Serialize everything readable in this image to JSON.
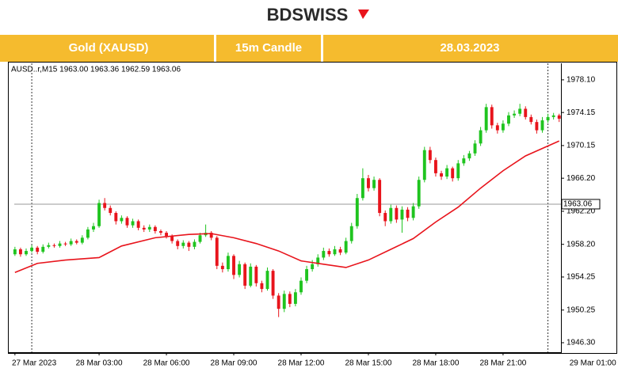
{
  "brand": "BDSWISS",
  "header": {
    "instrument": "Gold (XAUSD)",
    "timeframe": "15m Candle",
    "date": "28.03.2023"
  },
  "chart_data": {
    "type": "candlestick",
    "info": "AUSD..r,M15  1963.00 1963.36 1962.59 1963.06",
    "up_color": "#1fc41f",
    "down_color": "#e8141c",
    "x": [
      -0.75,
      -0.5,
      -0.25,
      0,
      0.25,
      0.5,
      0.75,
      1,
      1.25,
      1.5,
      1.75,
      2,
      2.25,
      2.5,
      2.75,
      3,
      3.25,
      3.5,
      3.75,
      4,
      4.25,
      4.5,
      4.75,
      5,
      5.25,
      5.5,
      5.75,
      6,
      6.25,
      6.5,
      6.75,
      7,
      7.25,
      7.5,
      7.75,
      8,
      8.25,
      8.5,
      8.75,
      9,
      9.25,
      9.5,
      9.75,
      10,
      10.25,
      10.5,
      10.75,
      11,
      11.25,
      11.5,
      11.75,
      12,
      12.25,
      12.5,
      12.75,
      13,
      13.25,
      13.5,
      13.75,
      14,
      14.25,
      14.5,
      14.75,
      15,
      15.25,
      15.5,
      15.75,
      16,
      16.25,
      16.5,
      16.75,
      17,
      17.25,
      17.5,
      17.75,
      18,
      18.25,
      18.5,
      18.75,
      19,
      19.25,
      19.5,
      19.75,
      20,
      20.25,
      20.5,
      20.75,
      21,
      21.25,
      21.5,
      21.75,
      22,
      22.25,
      22.5,
      22.75,
      23,
      23.25,
      23.5
    ],
    "open": [
      1957.0,
      1957.6,
      1957.0,
      1957.4,
      1957.8,
      1957.3,
      1957.9,
      1958.1,
      1958.0,
      1958.3,
      1958.2,
      1958.6,
      1958.4,
      1959.0,
      1960.0,
      1960.4,
      1963.2,
      1962.6,
      1962.0,
      1961.0,
      1961.4,
      1960.5,
      1961.0,
      1960.2,
      1960.0,
      1960.3,
      1959.8,
      1959.6,
      1959.2,
      1958.6,
      1958.0,
      1958.4,
      1957.9,
      1958.5,
      1959.3,
      1959.6,
      1959.0,
      1955.6,
      1955.2,
      1956.8,
      1954.5,
      1955.8,
      1953.2,
      1955.5,
      1953.5,
      1952.8,
      1955.0,
      1952.0,
      1950.4,
      1952.2,
      1951.0,
      1952.4,
      1953.8,
      1955.2,
      1955.8,
      1956.6,
      1957.4,
      1957.0,
      1957.6,
      1957.2,
      1958.6,
      1960.4,
      1963.8,
      1966.2,
      1965.0,
      1966.0,
      1962.0,
      1961.0,
      1962.6,
      1961.2,
      1962.4,
      1961.4,
      1962.8,
      1966.0,
      1969.6,
      1968.4,
      1966.8,
      1966.4,
      1967.4,
      1966.2,
      1968.0,
      1968.6,
      1969.2,
      1970.4,
      1972.0,
      1974.8,
      1972.6,
      1972.0,
      1972.8,
      1973.8,
      1974.0,
      1974.6,
      1973.6,
      1973.0,
      1972.0,
      1973.2,
      1973.6,
      1973.8
    ],
    "high": [
      1957.9,
      1957.8,
      1957.7,
      1958.1,
      1958.0,
      1958.2,
      1958.4,
      1958.3,
      1958.6,
      1958.5,
      1958.9,
      1958.8,
      1959.3,
      1960.3,
      1960.8,
      1963.6,
      1963.8,
      1962.9,
      1962.2,
      1961.7,
      1961.6,
      1961.3,
      1961.2,
      1960.5,
      1960.6,
      1960.5,
      1960.0,
      1959.8,
      1959.4,
      1958.8,
      1958.7,
      1958.6,
      1958.8,
      1959.6,
      1960.6,
      1959.8,
      1959.2,
      1956.0,
      1957.2,
      1957.0,
      1956.2,
      1956.0,
      1955.9,
      1955.7,
      1953.8,
      1955.4,
      1955.2,
      1952.3,
      1952.6,
      1952.5,
      1952.8,
      1954.2,
      1955.6,
      1956.3,
      1957.0,
      1957.8,
      1957.7,
      1958.0,
      1957.9,
      1959.0,
      1960.8,
      1964.3,
      1967.4,
      1966.6,
      1966.4,
      1966.2,
      1962.3,
      1963.0,
      1962.9,
      1962.8,
      1962.7,
      1963.2,
      1966.4,
      1970.0,
      1970.0,
      1968.7,
      1967.1,
      1967.8,
      1967.6,
      1968.4,
      1969.0,
      1969.5,
      1970.8,
      1972.4,
      1975.2,
      1975.1,
      1972.9,
      1973.2,
      1974.2,
      1974.4,
      1975.2,
      1974.9,
      1973.9,
      1973.3,
      1973.6,
      1974.0,
      1974.1,
      1974.0
    ],
    "low": [
      1956.8,
      1956.7,
      1956.8,
      1957.2,
      1957.0,
      1957.1,
      1957.7,
      1957.8,
      1957.8,
      1958.0,
      1958.0,
      1958.2,
      1958.2,
      1958.8,
      1959.7,
      1960.2,
      1962.3,
      1961.7,
      1960.6,
      1960.7,
      1960.2,
      1960.2,
      1959.9,
      1959.7,
      1959.7,
      1959.5,
      1959.3,
      1958.9,
      1958.3,
      1957.6,
      1957.7,
      1957.4,
      1957.6,
      1958.3,
      1959.1,
      1958.7,
      1955.2,
      1954.8,
      1954.9,
      1954.0,
      1954.2,
      1952.8,
      1953.0,
      1953.1,
      1952.4,
      1952.6,
      1951.6,
      1949.4,
      1950.0,
      1950.6,
      1950.7,
      1952.1,
      1953.5,
      1954.9,
      1955.5,
      1956.3,
      1956.7,
      1956.8,
      1956.9,
      1957.0,
      1958.3,
      1960.1,
      1963.5,
      1964.6,
      1964.7,
      1961.6,
      1960.4,
      1960.7,
      1960.8,
      1959.6,
      1961.0,
      1961.1,
      1962.5,
      1965.7,
      1968.0,
      1966.4,
      1966.0,
      1966.1,
      1965.8,
      1965.9,
      1967.7,
      1968.3,
      1968.9,
      1970.1,
      1971.7,
      1972.2,
      1971.6,
      1971.7,
      1972.5,
      1973.5,
      1973.7,
      1973.3,
      1972.7,
      1971.6,
      1971.7,
      1972.9,
      1973.3,
      1973.0
    ],
    "close": [
      1957.6,
      1957.0,
      1957.4,
      1957.8,
      1957.3,
      1957.9,
      1958.1,
      1958.0,
      1958.3,
      1958.2,
      1958.6,
      1958.4,
      1959.0,
      1960.0,
      1960.4,
      1963.2,
      1962.6,
      1962.0,
      1961.0,
      1961.4,
      1960.5,
      1961.0,
      1960.2,
      1960.0,
      1960.3,
      1959.8,
      1959.6,
      1959.2,
      1958.6,
      1958.0,
      1958.4,
      1957.9,
      1958.5,
      1959.3,
      1959.6,
      1959.0,
      1955.6,
      1955.2,
      1956.8,
      1954.5,
      1955.8,
      1953.2,
      1955.5,
      1953.5,
      1952.8,
      1955.0,
      1952.0,
      1950.4,
      1952.2,
      1951.0,
      1952.4,
      1953.8,
      1955.2,
      1955.8,
      1956.6,
      1957.4,
      1957.0,
      1957.6,
      1957.2,
      1958.6,
      1960.4,
      1963.8,
      1966.2,
      1965.0,
      1966.0,
      1962.0,
      1961.0,
      1962.6,
      1961.2,
      1962.4,
      1961.4,
      1962.8,
      1966.0,
      1969.6,
      1968.4,
      1966.8,
      1966.4,
      1967.4,
      1966.2,
      1968.0,
      1968.6,
      1969.2,
      1970.4,
      1972.0,
      1974.8,
      1972.6,
      1972.0,
      1972.8,
      1973.8,
      1974.0,
      1974.6,
      1973.6,
      1973.0,
      1972.0,
      1973.2,
      1973.6,
      1973.8,
      1973.4
    ],
    "moving_average": {
      "color": "#e8141c",
      "x": [
        -0.75,
        0.25,
        1.5,
        3,
        4,
        5.5,
        7,
        8,
        9,
        10,
        11,
        12,
        13,
        14,
        15,
        16,
        17,
        18,
        19,
        20,
        21,
        22,
        23.5
      ],
      "values": [
        1954.8,
        1955.9,
        1956.3,
        1956.6,
        1958.0,
        1959.0,
        1959.4,
        1959.5,
        1959.0,
        1958.3,
        1957.4,
        1956.2,
        1955.8,
        1955.4,
        1956.3,
        1957.6,
        1958.9,
        1960.9,
        1962.7,
        1965.0,
        1967.1,
        1968.9,
        1970.7
      ]
    },
    "price_line": {
      "value": 1963.06,
      "label": "1963.06",
      "color": "#9a9a9a"
    },
    "separators": [
      0,
      23
    ],
    "xlim": [
      -0.78,
      23.58
    ],
    "ylim": [
      1945.15,
      1980.1
    ],
    "xticks": [
      {
        "value": -0.75,
        "label": "27 Mar 2023"
      },
      {
        "value": 3,
        "label": "28 Mar 03:00"
      },
      {
        "value": 6,
        "label": "28 Mar 06:00"
      },
      {
        "value": 9,
        "label": "28 Mar 09:00"
      },
      {
        "value": 12,
        "label": "28 Mar 12:00"
      },
      {
        "value": 15,
        "label": "28 Mar 15:00"
      },
      {
        "value": 18,
        "label": "28 Mar 18:00"
      },
      {
        "value": 21,
        "label": "28 Mar 21:00"
      },
      {
        "value": 25,
        "label": "29 Mar 01:00"
      }
    ],
    "yticks": [
      {
        "value": 1946.3,
        "label": "1946.30"
      },
      1950.25,
      1954.25,
      {
        "value": 1958.2,
        "label": "1958.20"
      },
      {
        "value": 1962.2,
        "label": "1962.20"
      },
      {
        "value": 1966.2,
        "label": "1966.20"
      },
      1970.15,
      1974.15,
      {
        "value": 1978.1,
        "label": "1978.10"
      }
    ]
  }
}
